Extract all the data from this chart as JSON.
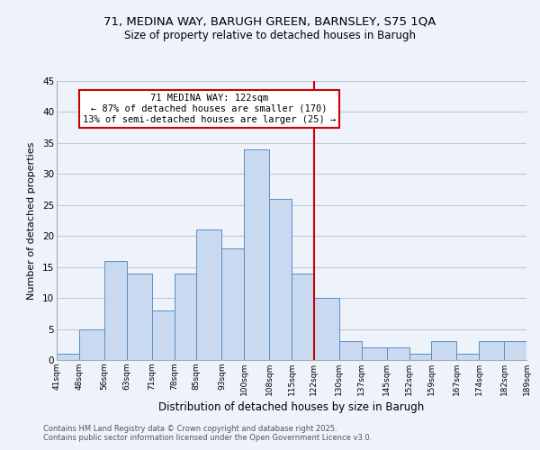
{
  "title_line1": "71, MEDINA WAY, BARUGH GREEN, BARNSLEY, S75 1QA",
  "title_line2": "Size of property relative to detached houses in Barugh",
  "xlabel": "Distribution of detached houses by size in Barugh",
  "ylabel": "Number of detached properties",
  "bins": [
    41,
    48,
    56,
    63,
    71,
    78,
    85,
    93,
    100,
    108,
    115,
    122,
    130,
    137,
    145,
    152,
    159,
    167,
    174,
    182,
    189
  ],
  "counts": [
    1,
    5,
    16,
    14,
    8,
    14,
    21,
    18,
    34,
    26,
    14,
    10,
    3,
    2,
    2,
    1,
    3,
    1,
    3,
    3
  ],
  "bar_color": "#c9d9f0",
  "bar_edge_color": "#5a8fc3",
  "grid_color": "#c0c8d8",
  "vline_x": 122,
  "vline_color": "#cc0000",
  "annotation_title": "71 MEDINA WAY: 122sqm",
  "annotation_line2": "← 87% of detached houses are smaller (170)",
  "annotation_line3": "13% of semi-detached houses are larger (25) →",
  "annotation_box_color": "#ffffff",
  "annotation_box_edge": "#cc0000",
  "ylim": [
    0,
    45
  ],
  "tick_labels": [
    "41sqm",
    "48sqm",
    "56sqm",
    "63sqm",
    "71sqm",
    "78sqm",
    "85sqm",
    "93sqm",
    "100sqm",
    "108sqm",
    "115sqm",
    "122sqm",
    "130sqm",
    "137sqm",
    "145sqm",
    "152sqm",
    "159sqm",
    "167sqm",
    "174sqm",
    "182sqm",
    "189sqm"
  ],
  "footer_line1": "Contains HM Land Registry data © Crown copyright and database right 2025.",
  "footer_line2": "Contains public sector information licensed under the Open Government Licence v3.0.",
  "background_color": "#eef2fa",
  "title_fontsize": 9.5,
  "subtitle_fontsize": 8.5,
  "annot_fontsize": 7.5,
  "xlabel_fontsize": 8.5,
  "ylabel_fontsize": 8.0,
  "footer_fontsize": 6.0
}
